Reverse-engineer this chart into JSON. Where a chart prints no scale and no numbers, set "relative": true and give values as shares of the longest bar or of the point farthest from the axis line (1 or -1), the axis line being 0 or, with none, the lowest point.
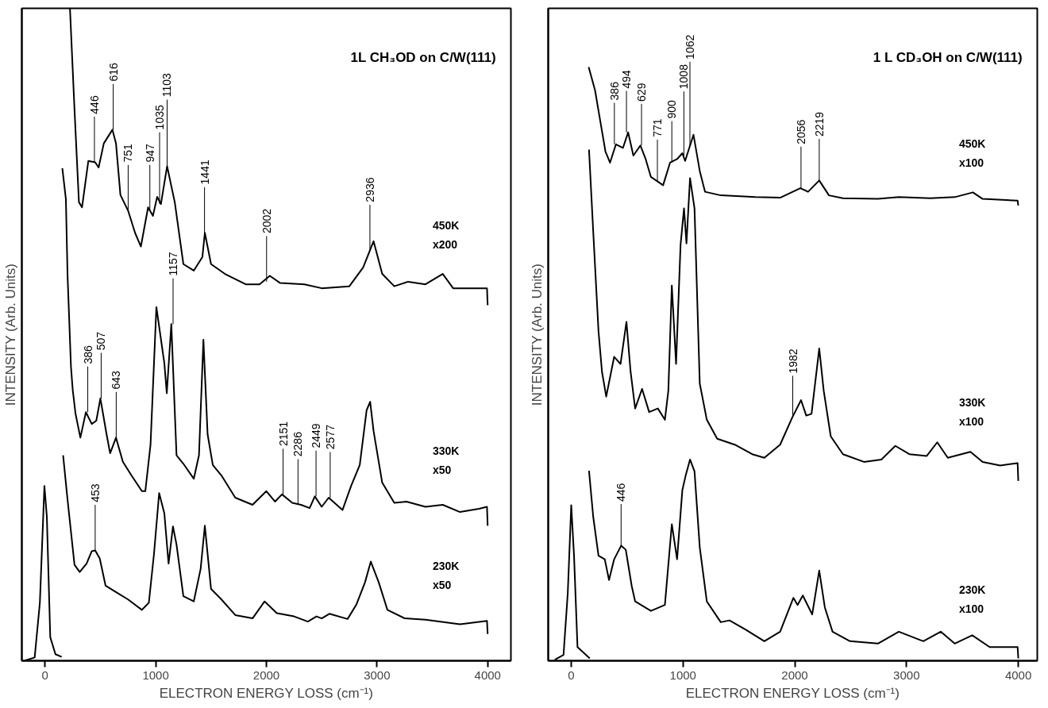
{
  "chart_data": [
    {
      "type": "line",
      "title": "1L CH₃OD on C/W(111)",
      "xlabel": "ELECTRON ENERGY LOSS (cm⁻¹)",
      "ylabel": "INTENSITY (Arb. Units)",
      "relative": true,
      "xlim": [
        -210,
        4210
      ],
      "xticks": [
        0,
        1000,
        2000,
        3000,
        4000
      ],
      "series": [
        {
          "color": "#000000",
          "x": [
            -190,
            -94,
            -47,
            -6,
            16,
            47,
            94,
            150
          ],
          "values": [
            0.0,
            0.005,
            0.089,
            0.268,
            0.221,
            0.036,
            0.01,
            0.006
          ]
        },
        {
          "name": "230K\nx50",
          "color": "#000000",
          "x": [
            163,
            203,
            266,
            313,
            375,
            422,
            453,
            494,
            547,
            625,
            750,
            875,
            938,
            984,
            1031,
            1078,
            1116,
            1156,
            1188,
            1250,
            1344,
            1406,
            1444,
            1500,
            1594,
            1719,
            1875,
            1984,
            2094,
            2250,
            2375,
            2453,
            2500,
            2569,
            2734,
            2813,
            2891,
            2944,
            3016,
            3094,
            3250,
            3438,
            3750,
            3994,
            4000
          ],
          "values": [
            0.315,
            0.247,
            0.147,
            0.136,
            0.149,
            0.168,
            0.169,
            0.157,
            0.115,
            0.107,
            0.094,
            0.078,
            0.089,
            0.163,
            0.257,
            0.226,
            0.149,
            0.206,
            0.178,
            0.099,
            0.091,
            0.141,
            0.207,
            0.11,
            0.094,
            0.07,
            0.065,
            0.091,
            0.073,
            0.068,
            0.06,
            0.068,
            0.065,
            0.072,
            0.064,
            0.086,
            0.12,
            0.152,
            0.12,
            0.078,
            0.065,
            0.063,
            0.056,
            0.061,
            0.041
          ]
        },
        {
          "name": "330K\nx50",
          "color": "#000000",
          "x": [
            156,
            188,
            203,
            234,
            250,
            275,
            319,
            369,
            422,
            463,
            500,
            556,
            588,
            641,
            703,
            781,
            875,
            906,
            953,
            1006,
            1078,
            1100,
            1141,
            1188,
            1250,
            1344,
            1391,
            1431,
            1469,
            1516,
            1594,
            1719,
            1875,
            2000,
            2078,
            2141,
            2234,
            2313,
            2391,
            2438,
            2500,
            2563,
            2688,
            2766,
            2844,
            2906,
            2938,
            2969,
            3047,
            3156,
            3266,
            3438,
            3594,
            3750,
            3922,
            3994,
            4000
          ],
          "values": [
            0.755,
            0.708,
            0.592,
            0.451,
            0.415,
            0.379,
            0.342,
            0.381,
            0.363,
            0.368,
            0.402,
            0.347,
            0.318,
            0.342,
            0.305,
            0.284,
            0.26,
            0.26,
            0.331,
            0.542,
            0.456,
            0.41,
            0.516,
            0.315,
            0.302,
            0.279,
            0.315,
            0.492,
            0.347,
            0.3,
            0.284,
            0.25,
            0.239,
            0.26,
            0.244,
            0.255,
            0.242,
            0.239,
            0.234,
            0.252,
            0.236,
            0.25,
            0.231,
            0.268,
            0.3,
            0.384,
            0.397,
            0.352,
            0.273,
            0.242,
            0.244,
            0.236,
            0.239,
            0.228,
            0.233,
            0.236,
            0.207
          ]
        },
        {
          "name": "450K\nx200",
          "color": "#000000",
          "x": [
            225,
            266,
            306,
            334,
            391,
            453,
            484,
            531,
            609,
            641,
            681,
            750,
            813,
            866,
            931,
            975,
            1013,
            1047,
            1103,
            1172,
            1250,
            1344,
            1422,
            1444,
            1500,
            1625,
            1813,
            1938,
            2031,
            2125,
            2344,
            2500,
            2750,
            2875,
            2969,
            3047,
            3156,
            3281,
            3438,
            3594,
            3688,
            3994,
            4000
          ],
          "values": [
            1.0,
            0.845,
            0.703,
            0.695,
            0.766,
            0.764,
            0.756,
            0.793,
            0.814,
            0.793,
            0.714,
            0.69,
            0.656,
            0.635,
            0.695,
            0.682,
            0.711,
            0.7,
            0.758,
            0.703,
            0.608,
            0.598,
            0.619,
            0.656,
            0.608,
            0.593,
            0.577,
            0.577,
            0.59,
            0.579,
            0.577,
            0.571,
            0.574,
            0.603,
            0.643,
            0.593,
            0.574,
            0.581,
            0.577,
            0.593,
            0.571,
            0.571,
            0.545
          ]
        }
      ],
      "annotations": [
        {
          "text": "446",
          "x": 446,
          "y": 0.764
        },
        {
          "text": "616",
          "x": 616,
          "y": 0.814
        },
        {
          "text": "751",
          "x": 751,
          "y": 0.69
        },
        {
          "text": "947",
          "x": 947,
          "y": 0.69
        },
        {
          "text": "1035",
          "x": 1035,
          "y": 0.7
        },
        {
          "text": "1103",
          "x": 1103,
          "y": 0.758
        },
        {
          "text": "1441",
          "x": 1441,
          "y": 0.656
        },
        {
          "text": "2002",
          "x": 2002,
          "y": 0.581
        },
        {
          "text": "2936",
          "x": 2936,
          "y": 0.629
        },
        {
          "text": "386",
          "x": 386,
          "y": 0.381
        },
        {
          "text": "507",
          "x": 507,
          "y": 0.402
        },
        {
          "text": "643",
          "x": 643,
          "y": 0.342
        },
        {
          "text": "1157",
          "x": 1157,
          "y": 0.516
        },
        {
          "text": "2151",
          "x": 2151,
          "y": 0.255
        },
        {
          "text": "2286",
          "x": 2286,
          "y": 0.239
        },
        {
          "text": "2449",
          "x": 2449,
          "y": 0.252
        },
        {
          "text": "2577",
          "x": 2577,
          "y": 0.25
        },
        {
          "text": "453",
          "x": 453,
          "y": 0.169
        }
      ]
    },
    {
      "type": "line",
      "title": "1 L CD₃OH on C/W(111)",
      "xlabel": "ELECTRON ENERGY LOSS (cm⁻¹)",
      "ylabel": "INTENSITY (Arb. Units)",
      "relative": true,
      "xlim": [
        -206,
        4170
      ],
      "xticks": [
        0,
        1000,
        2000,
        3000,
        4000
      ],
      "series": [
        {
          "color": "#000000",
          "x": [
            -147,
            -69,
            -31,
            0,
            25,
            56,
            166
          ],
          "values": [
            0.002,
            0.01,
            0.114,
            0.262,
            0.177,
            0.023,
            0.004
          ]
        },
        {
          "name": "230K\nx100",
          "color": "#000000",
          "x": [
            159,
            197,
            244,
            300,
            338,
            384,
            447,
            488,
            541,
            572,
            713,
            838,
            900,
            947,
            994,
            1025,
            1063,
            1103,
            1150,
            1213,
            1338,
            1416,
            1556,
            1728,
            1869,
            1988,
            2025,
            2072,
            2156,
            2219,
            2269,
            2338,
            2494,
            2744,
            2931,
            3150,
            3306,
            3431,
            3588,
            3744,
            3994,
            4000
          ],
          "values": [
            0.32,
            0.242,
            0.177,
            0.171,
            0.136,
            0.171,
            0.194,
            0.187,
            0.126,
            0.1,
            0.084,
            0.094,
            0.23,
            0.171,
            0.287,
            0.313,
            0.339,
            0.319,
            0.191,
            0.1,
            0.065,
            0.068,
            0.053,
            0.033,
            0.049,
            0.106,
            0.094,
            0.11,
            0.078,
            0.152,
            0.09,
            0.049,
            0.033,
            0.029,
            0.049,
            0.033,
            0.049,
            0.029,
            0.043,
            0.023,
            0.023,
            0.004
          ]
        },
        {
          "name": "330K\nx100",
          "color": "#000000",
          "x": [
            159,
            197,
            244,
            275,
            313,
            384,
            441,
            494,
            531,
            572,
            634,
            697,
            775,
            838,
            869,
            900,
            938,
            978,
            1009,
            1031,
            1063,
            1103,
            1150,
            1213,
            1306,
            1463,
            1619,
            1728,
            1869,
            1978,
            2056,
            2103,
            2150,
            2219,
            2259,
            2322,
            2431,
            2619,
            2775,
            2900,
            3025,
            3181,
            3275,
            3369,
            3572,
            3681,
            3838,
            3994,
            4000
          ],
          "values": [
            0.861,
            0.722,
            0.555,
            0.487,
            0.445,
            0.512,
            0.5,
            0.571,
            0.487,
            0.425,
            0.458,
            0.419,
            0.425,
            0.406,
            0.455,
            0.632,
            0.5,
            0.7,
            0.762,
            0.703,
            0.813,
            0.762,
            0.467,
            0.406,
            0.374,
            0.364,
            0.348,
            0.342,
            0.364,
            0.41,
            0.439,
            0.413,
            0.416,
            0.526,
            0.455,
            0.378,
            0.348,
            0.335,
            0.339,
            0.362,
            0.348,
            0.345,
            0.368,
            0.342,
            0.352,
            0.335,
            0.329,
            0.333,
            0.303
          ]
        },
        {
          "name": "450K\nx100",
          "color": "#000000",
          "x": [
            156,
            213,
            259,
            306,
            347,
            400,
            463,
            509,
            556,
            619,
            666,
            713,
            822,
            884,
            947,
            994,
            1019,
            1094,
            1150,
            1197,
            1338,
            1650,
            1869,
            2050,
            2119,
            2219,
            2306,
            2431,
            2744,
            2931,
            3213,
            3431,
            3594,
            3681,
            3994,
            4000
          ],
          "values": [
            1.0,
            0.961,
            0.91,
            0.858,
            0.839,
            0.87,
            0.864,
            0.89,
            0.851,
            0.868,
            0.845,
            0.815,
            0.801,
            0.839,
            0.845,
            0.855,
            0.842,
            0.886,
            0.825,
            0.79,
            0.784,
            0.781,
            0.78,
            0.796,
            0.79,
            0.809,
            0.784,
            0.779,
            0.778,
            0.781,
            0.779,
            0.781,
            0.789,
            0.778,
            0.775,
            0.767
          ]
        }
      ],
      "annotations": [
        {
          "text": "386",
          "x": 386,
          "y": 0.87
        },
        {
          "text": "494",
          "x": 494,
          "y": 0.89
        },
        {
          "text": "629",
          "x": 629,
          "y": 0.868
        },
        {
          "text": "771",
          "x": 771,
          "y": 0.808
        },
        {
          "text": "900",
          "x": 900,
          "y": 0.839
        },
        {
          "text": "1008",
          "x": 1008,
          "y": 0.85
        },
        {
          "text": "1062",
          "x": 1062,
          "y": 0.867
        },
        {
          "text": "2056",
          "x": 2056,
          "y": 0.796
        },
        {
          "text": "2219",
          "x": 2219,
          "y": 0.809
        },
        {
          "text": "1982",
          "x": 1982,
          "y": 0.41
        },
        {
          "text": "446",
          "x": 446,
          "y": 0.194
        }
      ]
    }
  ]
}
